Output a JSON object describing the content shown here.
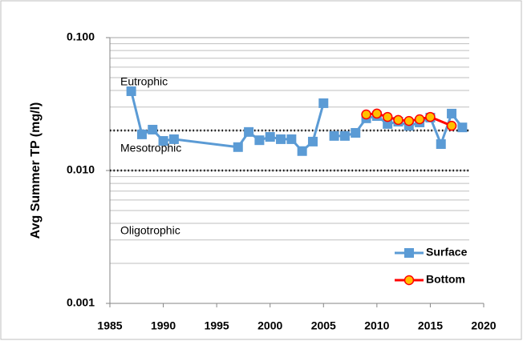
{
  "chart_data": {
    "type": "line",
    "y_label": "Avg Summer TP (mg/l)",
    "xlim": [
      1985,
      2020
    ],
    "xticks": [
      1985,
      1990,
      1995,
      2000,
      2005,
      2010,
      2015,
      2020
    ],
    "ylim": [
      0.001,
      0.1
    ],
    "ylog": true,
    "yticks": [
      0.001,
      {
        "value": 0.01,
        "label": "0.010"
      },
      {
        "value": 0.1,
        "label": "0.100"
      }
    ],
    "grid": true,
    "legend": "lower right",
    "reference_lines": [
      {
        "value": 0.02
      },
      {
        "value": 0.01
      }
    ],
    "annotations": [
      "Eutrophic",
      "Mesotrophic",
      "Oligotrophic"
    ],
    "series": [
      {
        "name": "Surface",
        "color": "#5b9bd5",
        "marker": "square",
        "x": [
          1987,
          1988,
          1989,
          1990,
          1991,
          1997,
          1998,
          1999,
          2000,
          2001,
          2002,
          2003,
          2004,
          2005,
          null,
          2006,
          2007,
          2008,
          2009,
          2010,
          2011,
          2012,
          2013,
          2014,
          2015,
          2016,
          2017,
          2018
        ],
        "values": [
          0.0395,
          0.0187,
          0.0203,
          0.0167,
          0.0172,
          0.015,
          0.0195,
          0.0169,
          0.0179,
          0.0172,
          0.0172,
          0.014,
          0.0165,
          0.0321,
          null,
          0.0182,
          0.0182,
          0.0192,
          0.0247,
          0.0257,
          0.0224,
          0.0233,
          0.0217,
          0.023,
          0.025,
          0.0158,
          0.0268,
          0.0211
        ]
      },
      {
        "name": "Bottom",
        "color": "#ff0000",
        "marker_color": "#ffc000",
        "marker": "circle",
        "x": [
          2009,
          2010,
          2011,
          2012,
          2013,
          2014,
          2015,
          2017
        ],
        "values": [
          0.0264,
          0.0268,
          0.0253,
          0.024,
          0.0236,
          0.0243,
          0.0253,
          0.0217
        ]
      }
    ]
  }
}
